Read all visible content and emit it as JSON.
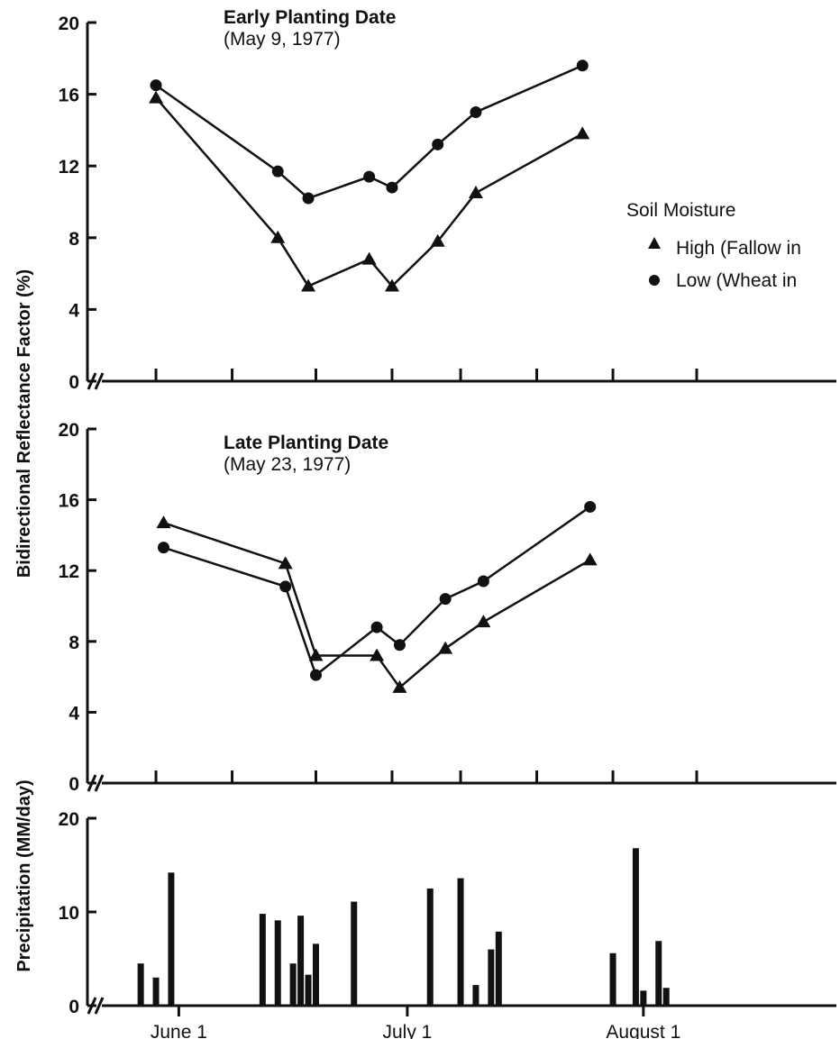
{
  "chart_data": [
    {
      "type": "line",
      "title": "Early Planting Date",
      "subtitle": "(May 9, 1977)",
      "ylabel": "Bidirectional Reflectance Factor  (%)",
      "ylim": [
        0,
        20
      ],
      "yticks": [
        "0",
        "4",
        "8",
        "12",
        "16",
        "20"
      ],
      "x_unit": "day of 1977",
      "x_range": [
        "1977-05-20",
        "1977-08-26"
      ],
      "legend_title": "Soil Moisture",
      "legend_position": "right",
      "series": [
        {
          "name": "High (Fallow in",
          "marker": "triangle",
          "x": [
            "1977-05-29",
            "1977-06-14",
            "1977-06-18",
            "1977-06-26",
            "1977-06-29",
            "1977-07-05",
            "1977-07-10",
            "1977-07-24"
          ],
          "values": [
            15.8,
            8.0,
            5.3,
            6.8,
            5.3,
            7.8,
            10.5,
            13.8
          ]
        },
        {
          "name": "Low (Wheat in",
          "marker": "circle",
          "x": [
            "1977-05-29",
            "1977-06-14",
            "1977-06-18",
            "1977-06-26",
            "1977-06-29",
            "1977-07-05",
            "1977-07-10",
            "1977-07-24"
          ],
          "values": [
            16.5,
            11.7,
            10.2,
            11.4,
            10.8,
            13.2,
            15.0,
            17.6
          ]
        }
      ]
    },
    {
      "type": "line",
      "title": "Late Planting Date",
      "subtitle": "(May 23, 1977)",
      "ylabel": "Bidirectional Reflectance Factor  (%)",
      "ylim": [
        0,
        20
      ],
      "yticks": [
        "0",
        "4",
        "8",
        "12",
        "16",
        "20"
      ],
      "series": [
        {
          "name": "High (Fallow in",
          "marker": "triangle",
          "x": [
            "1977-05-30",
            "1977-06-15",
            "1977-06-19",
            "1977-06-27",
            "1977-06-30",
            "1977-07-06",
            "1977-07-11",
            "1977-07-25"
          ],
          "values": [
            14.7,
            12.4,
            7.2,
            7.2,
            5.4,
            7.6,
            9.1,
            12.6
          ]
        },
        {
          "name": "Low (Wheat in",
          "marker": "circle",
          "x": [
            "1977-05-30",
            "1977-06-15",
            "1977-06-19",
            "1977-06-27",
            "1977-06-30",
            "1977-07-06",
            "1977-07-11",
            "1977-07-25"
          ],
          "values": [
            13.3,
            11.1,
            6.1,
            8.8,
            7.8,
            10.4,
            11.4,
            15.6
          ]
        }
      ]
    },
    {
      "type": "bar",
      "ylabel": "Precipitation  (MM/day)",
      "ylim": [
        0,
        20
      ],
      "yticks": [
        "0",
        "10",
        "20"
      ],
      "xticks": [
        {
          "date": "1977-06-01",
          "label": "June 1"
        },
        {
          "date": "1977-07-01",
          "label": "July 1"
        },
        {
          "date": "1977-08-01",
          "label": "August 1"
        }
      ],
      "bars": [
        {
          "date": "1977-05-27",
          "value": 4.5
        },
        {
          "date": "1977-05-29",
          "value": 3.0
        },
        {
          "date": "1977-05-31",
          "value": 14.2
        },
        {
          "date": "1977-06-12",
          "value": 9.8
        },
        {
          "date": "1977-06-14",
          "value": 9.1
        },
        {
          "date": "1977-06-16",
          "value": 4.5
        },
        {
          "date": "1977-06-17",
          "value": 9.6
        },
        {
          "date": "1977-06-18",
          "value": 3.3
        },
        {
          "date": "1977-06-19",
          "value": 6.6
        },
        {
          "date": "1977-06-24",
          "value": 11.1
        },
        {
          "date": "1977-07-04",
          "value": 12.5
        },
        {
          "date": "1977-07-08",
          "value": 13.6
        },
        {
          "date": "1977-07-10",
          "value": 2.2
        },
        {
          "date": "1977-07-12",
          "value": 6.0
        },
        {
          "date": "1977-07-13",
          "value": 7.9
        },
        {
          "date": "1977-07-28",
          "value": 5.6
        },
        {
          "date": "1977-07-31",
          "value": 16.8
        },
        {
          "date": "1977-08-01",
          "value": 1.6
        },
        {
          "date": "1977-08-03",
          "value": 6.9
        },
        {
          "date": "1977-08-04",
          "value": 1.9
        }
      ]
    }
  ]
}
